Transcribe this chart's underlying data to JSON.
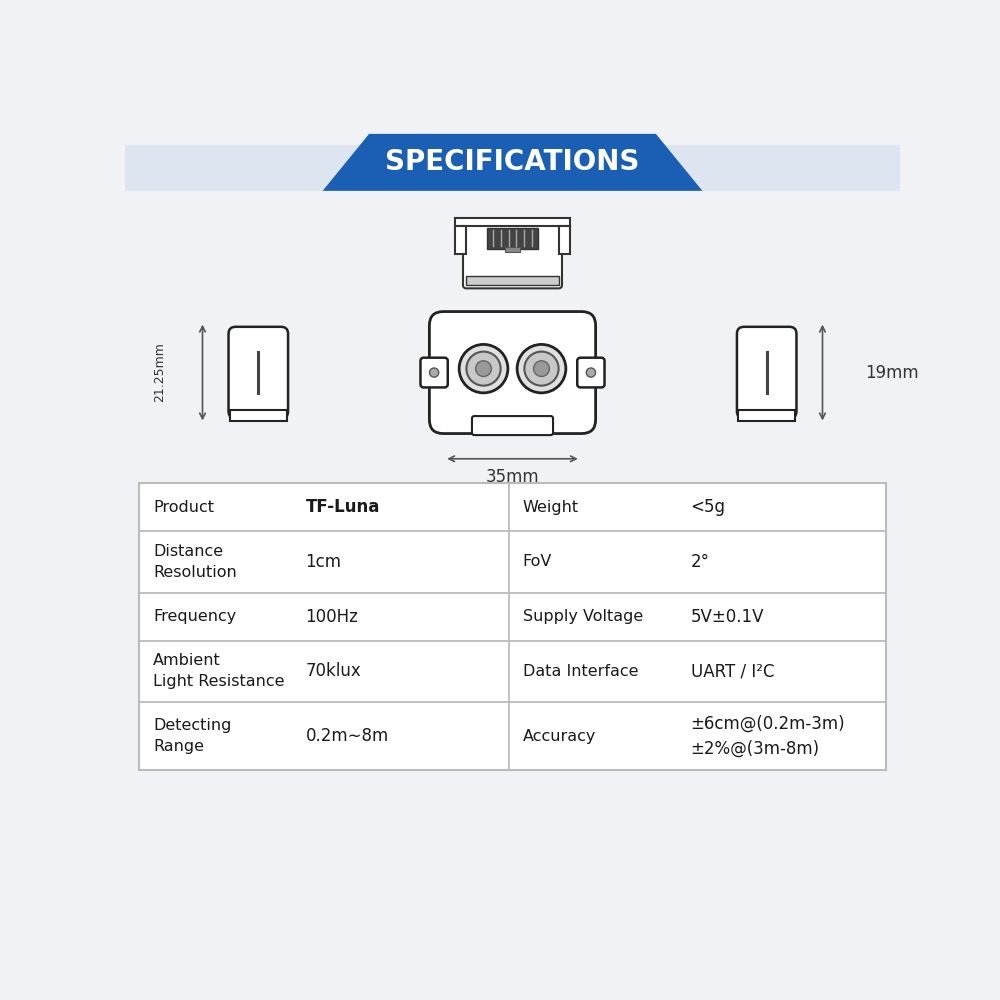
{
  "title": "SPECIFICATIONS",
  "title_bg_color": "#1a5fb4",
  "title_text_color": "#ffffff",
  "bg_color": "#f0f2f5",
  "table_bg_color": "#ffffff",
  "table_border_color": "#bbbbbb",
  "dim_35mm": "35mm",
  "dim_21_25mm": "21.25mm",
  "dim_19mm": "19mm",
  "table_rows": [
    {
      "left_label": "Product",
      "left_value": "TF-Luna",
      "right_label": "Weight",
      "right_value": "<5g",
      "left_value_bold": true
    },
    {
      "left_label": "Distance\nResolution",
      "left_value": "1cm",
      "right_label": "FoV",
      "right_value": "2°",
      "left_value_bold": false
    },
    {
      "left_label": "Frequency",
      "left_value": "100Hz",
      "right_label": "Supply Voltage",
      "right_value": "5V±0.1V",
      "left_value_bold": false
    },
    {
      "left_label": "Ambient\nLight Resistance",
      "left_value": "70klux",
      "right_label": "Data Interface",
      "right_value": "UART / I²C",
      "left_value_bold": false
    },
    {
      "left_label": "Detecting\nRange",
      "left_value": "0.2m∼8m",
      "right_label": "Accuracy",
      "right_value": "±6cm@(0.2m-3m)\n±2%@(3m-8m)",
      "left_value_bold": false
    }
  ]
}
